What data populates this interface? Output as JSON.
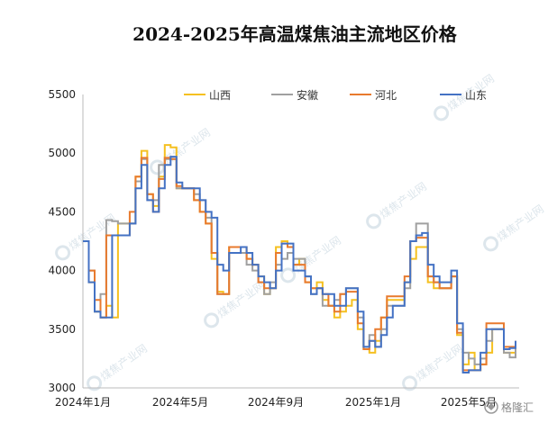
{
  "chart_data": {
    "type": "line",
    "title": "2024-2025年高温煤焦油主流地区价格",
    "xlabel": "",
    "ylabel": "",
    "ylim": [
      3000,
      5500
    ],
    "y_ticks": [
      3000,
      3500,
      4000,
      4500,
      5000,
      5500
    ],
    "x_ticks": [
      "2024年1月",
      "2024年5月",
      "2024年9月",
      "2025年1月",
      "2025年5月"
    ],
    "grid": false,
    "legend_position": "top",
    "series": [
      {
        "name": "山西",
        "color": "#F5C020",
        "values": [
          4250,
          3900,
          3650,
          3600,
          3700,
          3600,
          4400,
          4400,
          4400,
          4800,
          5020,
          4650,
          4550,
          4800,
          5070,
          5050,
          4700,
          4700,
          4700,
          4600,
          4500,
          4400,
          4100,
          3820,
          3800,
          4200,
          4200,
          4200,
          4100,
          4050,
          3950,
          3800,
          3850,
          4200,
          4250,
          4200,
          4050,
          4100,
          3900,
          3850,
          3900,
          3750,
          3700,
          3600,
          3650,
          3700,
          3750,
          3500,
          3330,
          3300,
          3400,
          3600,
          3750,
          3750,
          3750,
          3900,
          4100,
          4200,
          4200,
          3900,
          3850,
          3850,
          3850,
          3950,
          3450,
          3200,
          3300,
          3150,
          3200,
          3300,
          3500,
          3500,
          3300,
          3300,
          3350
        ]
      },
      {
        "name": "安徽",
        "color": "#A0A0A0",
        "values": [
          4250,
          4000,
          3650,
          3800,
          4430,
          4420,
          4400,
          4400,
          4400,
          4760,
          4950,
          4600,
          4600,
          4900,
          4950,
          4950,
          4700,
          4700,
          4700,
          4650,
          4600,
          4450,
          4150,
          3800,
          3800,
          4150,
          4150,
          4150,
          4050,
          4000,
          3900,
          3800,
          3900,
          4050,
          4100,
          4150,
          4100,
          4100,
          3950,
          3800,
          3850,
          3700,
          3700,
          3750,
          3800,
          3850,
          3850,
          3600,
          3350,
          3450,
          3350,
          3500,
          3700,
          3700,
          3700,
          3850,
          4250,
          4400,
          4400,
          3950,
          3900,
          3850,
          3850,
          3950,
          3500,
          3300,
          3250,
          3200,
          3250,
          3400,
          3500,
          3500,
          3300,
          3260,
          3400
        ]
      },
      {
        "name": "河北",
        "color": "#E87A2E",
        "values": [
          4250,
          4000,
          3750,
          3600,
          4300,
          4300,
          4300,
          4300,
          4500,
          4800,
          4960,
          4650,
          4500,
          4780,
          4960,
          4950,
          4720,
          4700,
          4700,
          4600,
          4500,
          4400,
          4150,
          3800,
          3800,
          4200,
          4200,
          4200,
          4100,
          4050,
          3900,
          3850,
          3850,
          4150,
          4230,
          4200,
          4050,
          4050,
          3900,
          3850,
          3850,
          3800,
          3700,
          3650,
          3800,
          3820,
          3820,
          3550,
          3330,
          3400,
          3500,
          3600,
          3780,
          3780,
          3780,
          3950,
          4250,
          4280,
          4280,
          3950,
          3900,
          3850,
          3850,
          3950,
          3470,
          3150,
          3150,
          3150,
          3200,
          3550,
          3550,
          3550,
          3350,
          3350,
          3400
        ]
      },
      {
        "name": "山东",
        "color": "#4472C4",
        "values": [
          4250,
          3900,
          3650,
          3600,
          3600,
          4300,
          4300,
          4300,
          4400,
          4700,
          4900,
          4600,
          4500,
          4700,
          4900,
          4970,
          4750,
          4700,
          4700,
          4700,
          4600,
          4500,
          4450,
          4050,
          4000,
          4150,
          4150,
          4200,
          4150,
          4050,
          3950,
          3900,
          3850,
          4000,
          4230,
          4230,
          4000,
          4000,
          3950,
          3800,
          3850,
          3800,
          3800,
          3700,
          3700,
          3850,
          3850,
          3650,
          3350,
          3400,
          3350,
          3450,
          3600,
          3700,
          3700,
          3900,
          4250,
          4300,
          4320,
          4050,
          3950,
          3900,
          3900,
          4000,
          3550,
          3130,
          3150,
          3150,
          3300,
          3500,
          3500,
          3500,
          3330,
          3340,
          3400
        ]
      }
    ]
  },
  "legend": {
    "items": [
      "山西",
      "安徽",
      "河北",
      "山东"
    ]
  },
  "watermark": {
    "text": "煤焦产业网",
    "brand": "格隆汇"
  }
}
